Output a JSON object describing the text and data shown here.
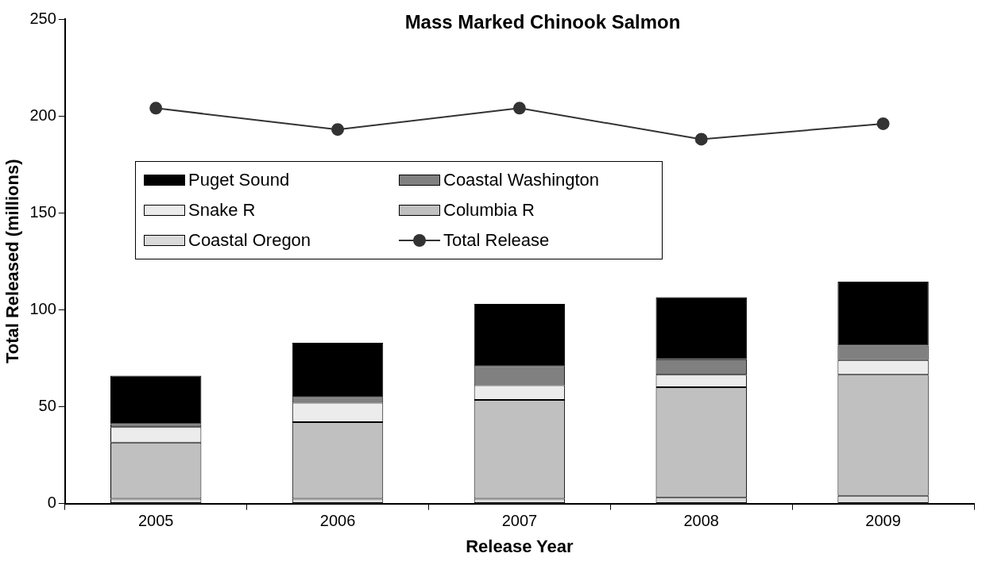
{
  "chart_data": {
    "type": "bar",
    "title": "Mass Marked Chinook Salmon",
    "xlabel": "Release Year",
    "ylabel": "Total Released (millions)",
    "categories": [
      "2005",
      "2006",
      "2007",
      "2008",
      "2009"
    ],
    "stacked": true,
    "series": [
      {
        "name": "Coastal Oregon",
        "color": "#dadada",
        "values": [
          2.5,
          2.5,
          2.5,
          3,
          4
        ]
      },
      {
        "name": "Columbia R",
        "color": "#c0c0c0",
        "values": [
          29,
          39.5,
          51,
          57,
          62.5
        ]
      },
      {
        "name": "Snake R",
        "color": "#ececec",
        "values": [
          8,
          10,
          7.5,
          6.5,
          7.5
        ]
      },
      {
        "name": "Coastal Washington",
        "color": "#808080",
        "values": [
          1.5,
          3,
          10,
          8,
          7.5
        ]
      },
      {
        "name": "Puget Sound",
        "color": "#000000",
        "values": [
          25,
          28,
          32,
          32,
          33
        ]
      },
      {
        "name": "Total Release",
        "type": "line",
        "color": "#333333",
        "values": [
          204,
          193,
          204,
          188,
          196
        ]
      }
    ],
    "ylim": [
      0,
      250
    ],
    "yticks": [
      0,
      50,
      100,
      150,
      200,
      250
    ],
    "grid": false,
    "legend": "left",
    "marker": "circle"
  }
}
